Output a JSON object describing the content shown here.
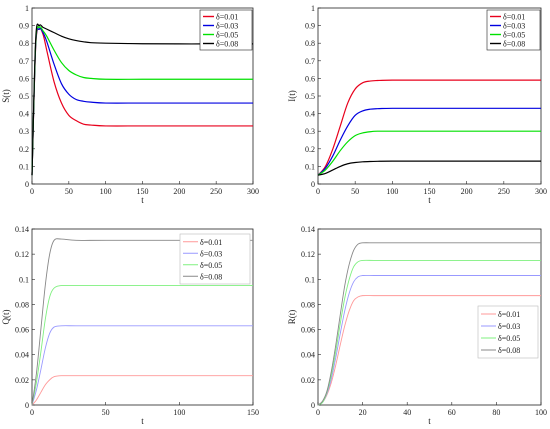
{
  "chart_data": [
    {
      "type": "line",
      "xlabel": "t",
      "ylabel": "S(t)",
      "xlim": [
        0,
        300
      ],
      "ylim": [
        0,
        1
      ],
      "xticks": [
        0,
        50,
        100,
        150,
        200,
        250,
        300
      ],
      "yticks": [
        0,
        0.1,
        0.2,
        0.3,
        0.4,
        0.5,
        0.6,
        0.7,
        0.8,
        0.9,
        1
      ],
      "grid": false,
      "legend_position": "top-right",
      "series": [
        {
          "name": "δ=0.01",
          "color": "#e8001c",
          "x": [
            0,
            5,
            10,
            15,
            20,
            30,
            40,
            50,
            60,
            70,
            80,
            100,
            150,
            200,
            250,
            300
          ],
          "y": [
            0.05,
            0.78,
            0.88,
            0.85,
            0.76,
            0.58,
            0.46,
            0.39,
            0.36,
            0.34,
            0.335,
            0.33,
            0.33,
            0.33,
            0.33,
            0.33
          ]
        },
        {
          "name": "δ=0.03",
          "color": "#0000e0",
          "x": [
            0,
            5,
            10,
            15,
            20,
            30,
            40,
            50,
            60,
            70,
            80,
            100,
            150,
            200,
            250,
            300
          ],
          "y": [
            0.05,
            0.79,
            0.88,
            0.86,
            0.81,
            0.68,
            0.57,
            0.51,
            0.48,
            0.47,
            0.465,
            0.46,
            0.46,
            0.46,
            0.46,
            0.46
          ]
        },
        {
          "name": "δ=0.05",
          "color": "#00e000",
          "x": [
            0,
            5,
            10,
            15,
            20,
            30,
            40,
            50,
            60,
            70,
            80,
            100,
            150,
            200,
            250,
            300
          ],
          "y": [
            0.05,
            0.8,
            0.89,
            0.87,
            0.84,
            0.76,
            0.69,
            0.645,
            0.62,
            0.605,
            0.6,
            0.595,
            0.595,
            0.595,
            0.595,
            0.595
          ]
        },
        {
          "name": "δ=0.08",
          "color": "#000000",
          "x": [
            0,
            5,
            10,
            15,
            20,
            30,
            40,
            50,
            60,
            70,
            80,
            100,
            150,
            200,
            250,
            300
          ],
          "y": [
            0.05,
            0.82,
            0.9,
            0.89,
            0.88,
            0.86,
            0.84,
            0.825,
            0.815,
            0.808,
            0.803,
            0.8,
            0.797,
            0.796,
            0.796,
            0.796
          ]
        }
      ]
    },
    {
      "type": "line",
      "xlabel": "t",
      "ylabel": "I(t)",
      "xlim": [
        0,
        300
      ],
      "ylim": [
        0,
        1
      ],
      "xticks": [
        0,
        50,
        100,
        150,
        200,
        250,
        300
      ],
      "yticks": [
        0,
        0.1,
        0.2,
        0.3,
        0.4,
        0.5,
        0.6,
        0.7,
        0.8,
        0.9,
        1
      ],
      "grid": false,
      "legend_position": "top-right",
      "series": [
        {
          "name": "δ=0.01",
          "color": "#e8001c",
          "x": [
            0,
            10,
            20,
            30,
            40,
            50,
            60,
            70,
            80,
            100,
            150,
            200,
            250,
            300
          ],
          "y": [
            0.05,
            0.1,
            0.2,
            0.33,
            0.46,
            0.54,
            0.575,
            0.585,
            0.588,
            0.59,
            0.59,
            0.59,
            0.59,
            0.59
          ]
        },
        {
          "name": "δ=0.03",
          "color": "#0000e0",
          "x": [
            0,
            10,
            20,
            30,
            40,
            50,
            60,
            70,
            80,
            100,
            150,
            200,
            250,
            300
          ],
          "y": [
            0.05,
            0.09,
            0.16,
            0.25,
            0.33,
            0.39,
            0.415,
            0.425,
            0.428,
            0.43,
            0.43,
            0.43,
            0.43,
            0.43
          ]
        },
        {
          "name": "δ=0.05",
          "color": "#00e000",
          "x": [
            0,
            10,
            20,
            30,
            40,
            50,
            60,
            70,
            80,
            100,
            150,
            200,
            250,
            300
          ],
          "y": [
            0.05,
            0.08,
            0.13,
            0.19,
            0.24,
            0.275,
            0.29,
            0.297,
            0.3,
            0.3,
            0.3,
            0.3,
            0.3,
            0.3
          ]
        },
        {
          "name": "δ=0.08",
          "color": "#000000",
          "x": [
            0,
            10,
            20,
            30,
            40,
            50,
            60,
            70,
            80,
            100,
            150,
            200,
            250,
            300
          ],
          "y": [
            0.05,
            0.06,
            0.08,
            0.1,
            0.115,
            0.122,
            0.126,
            0.128,
            0.129,
            0.13,
            0.13,
            0.13,
            0.13,
            0.13
          ]
        }
      ]
    },
    {
      "type": "line",
      "xlabel": "t",
      "ylabel": "Q(t)",
      "xlim": [
        0,
        150
      ],
      "ylim": [
        0,
        0.14
      ],
      "xticks": [
        0,
        50,
        100,
        150
      ],
      "yticks": [
        0,
        0.02,
        0.04,
        0.06,
        0.08,
        0.1,
        0.12,
        0.14
      ],
      "grid": false,
      "legend_position": "top-right",
      "series": [
        {
          "name": "δ=0.01",
          "color": "#ff9999",
          "x": [
            0,
            3,
            6,
            9,
            12,
            15,
            20,
            30,
            50,
            100,
            150
          ],
          "y": [
            0,
            0.004,
            0.01,
            0.016,
            0.02,
            0.0225,
            0.0233,
            0.0233,
            0.0233,
            0.0233,
            0.0233
          ]
        },
        {
          "name": "δ=0.03",
          "color": "#9999ff",
          "x": [
            0,
            3,
            6,
            9,
            12,
            15,
            20,
            30,
            50,
            100,
            150
          ],
          "y": [
            0,
            0.012,
            0.028,
            0.045,
            0.057,
            0.062,
            0.063,
            0.063,
            0.063,
            0.063,
            0.063
          ]
        },
        {
          "name": "δ=0.05",
          "color": "#7ff07f",
          "x": [
            0,
            3,
            6,
            9,
            12,
            15,
            20,
            30,
            50,
            100,
            150
          ],
          "y": [
            0,
            0.018,
            0.042,
            0.068,
            0.086,
            0.093,
            0.095,
            0.095,
            0.095,
            0.095,
            0.095
          ]
        },
        {
          "name": "δ=0.08",
          "color": "#888888",
          "x": [
            0,
            3,
            6,
            9,
            12,
            15,
            20,
            30,
            50,
            100,
            150
          ],
          "y": [
            0,
            0.025,
            0.06,
            0.095,
            0.12,
            0.131,
            0.132,
            0.131,
            0.131,
            0.131,
            0.131
          ]
        }
      ]
    },
    {
      "type": "line",
      "xlabel": "t",
      "ylabel": "R(t)",
      "xlim": [
        0,
        100
      ],
      "ylim": [
        0,
        0.14
      ],
      "xticks": [
        0,
        20,
        40,
        60,
        80,
        100
      ],
      "yticks": [
        0,
        0.02,
        0.04,
        0.06,
        0.08,
        0.1,
        0.12,
        0.14
      ],
      "grid": false,
      "legend_position": "bottom-right",
      "series": [
        {
          "name": "δ=0.01",
          "color": "#ff9999",
          "x": [
            0,
            2,
            4,
            6,
            8,
            10,
            12,
            14,
            16,
            18,
            20,
            25,
            30,
            50,
            100
          ],
          "y": [
            0,
            0.002,
            0.008,
            0.018,
            0.032,
            0.048,
            0.063,
            0.075,
            0.083,
            0.086,
            0.087,
            0.087,
            0.087,
            0.087,
            0.087
          ]
        },
        {
          "name": "δ=0.03",
          "color": "#9999ff",
          "x": [
            0,
            2,
            4,
            6,
            8,
            10,
            12,
            14,
            16,
            18,
            20,
            25,
            30,
            50,
            100
          ],
          "y": [
            0,
            0.002,
            0.009,
            0.021,
            0.038,
            0.057,
            0.075,
            0.089,
            0.098,
            0.102,
            0.103,
            0.103,
            0.103,
            0.103,
            0.103
          ]
        },
        {
          "name": "δ=0.05",
          "color": "#7ff07f",
          "x": [
            0,
            2,
            4,
            6,
            8,
            10,
            12,
            14,
            16,
            18,
            20,
            25,
            30,
            50,
            100
          ],
          "y": [
            0,
            0.002,
            0.01,
            0.024,
            0.043,
            0.065,
            0.085,
            0.1,
            0.11,
            0.114,
            0.115,
            0.115,
            0.115,
            0.115,
            0.115
          ]
        },
        {
          "name": "δ=0.08",
          "color": "#888888",
          "x": [
            0,
            2,
            4,
            6,
            8,
            10,
            12,
            14,
            16,
            18,
            20,
            25,
            30,
            50,
            100
          ],
          "y": [
            0,
            0.003,
            0.011,
            0.027,
            0.048,
            0.072,
            0.095,
            0.112,
            0.123,
            0.128,
            0.129,
            0.129,
            0.129,
            0.129,
            0.129
          ]
        }
      ]
    }
  ]
}
